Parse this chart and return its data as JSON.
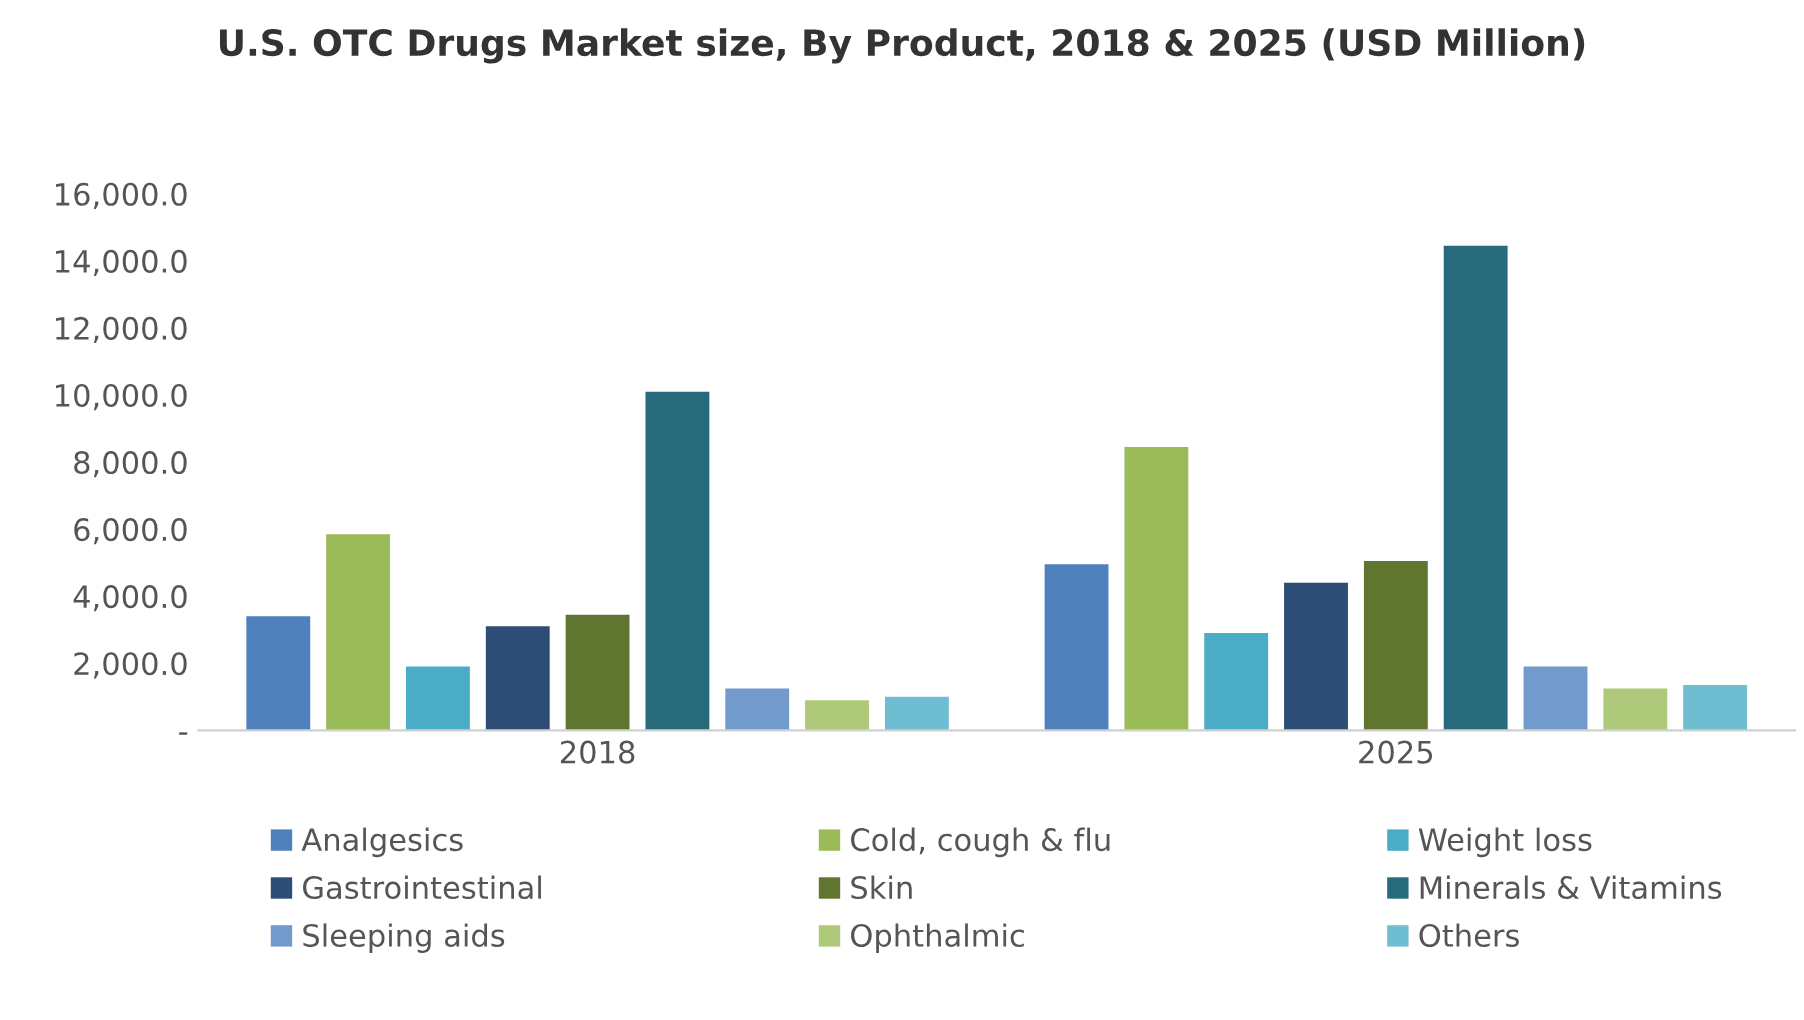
{
  "chart_data": {
    "type": "bar",
    "title": "U.S. OTC Drugs Market size, By Product, 2018 & 2025 (USD Million)",
    "categories": [
      "2018",
      "2025"
    ],
    "series": [
      {
        "name": "Analgesics",
        "color": "#4f81bd",
        "values": [
          3400,
          4950
        ]
      },
      {
        "name": "Cold, cough & flu",
        "color": "#9bbb59",
        "values": [
          5850,
          8450
        ]
      },
      {
        "name": "Weight loss",
        "color": "#4bacc6",
        "values": [
          1900,
          2900
        ]
      },
      {
        "name": "Gastrointestinal",
        "color": "#2c4d75",
        "values": [
          3100,
          4400
        ]
      },
      {
        "name": "Skin",
        "color": "#5f7530",
        "values": [
          3450,
          5050
        ]
      },
      {
        "name": "Minerals & Vitamins",
        "color": "#276a7c",
        "values": [
          10100,
          14450
        ]
      },
      {
        "name": "Sleeping aids",
        "color": "#729aca",
        "values": [
          1250,
          1900
        ]
      },
      {
        "name": "Ophthalmic",
        "color": "#afc97a",
        "values": [
          900,
          1250
        ]
      },
      {
        "name": "Others",
        "color": "#6fbdd1",
        "values": [
          1000,
          1350
        ]
      }
    ],
    "ylim": [
      0,
      16000
    ],
    "yticks": [
      {
        "value": 0,
        "label": "-"
      },
      {
        "value": 2000,
        "label": "2,000.0"
      },
      {
        "value": 4000,
        "label": "4,000.0"
      },
      {
        "value": 6000,
        "label": "6,000.0"
      },
      {
        "value": 8000,
        "label": "8,000.0"
      },
      {
        "value": 10000,
        "label": "10,000.0"
      },
      {
        "value": 12000,
        "label": "12,000.0"
      },
      {
        "value": 14000,
        "label": "14,000.0"
      },
      {
        "value": 16000,
        "label": "16,000.0"
      }
    ],
    "grid": false,
    "legend": "bottom"
  }
}
